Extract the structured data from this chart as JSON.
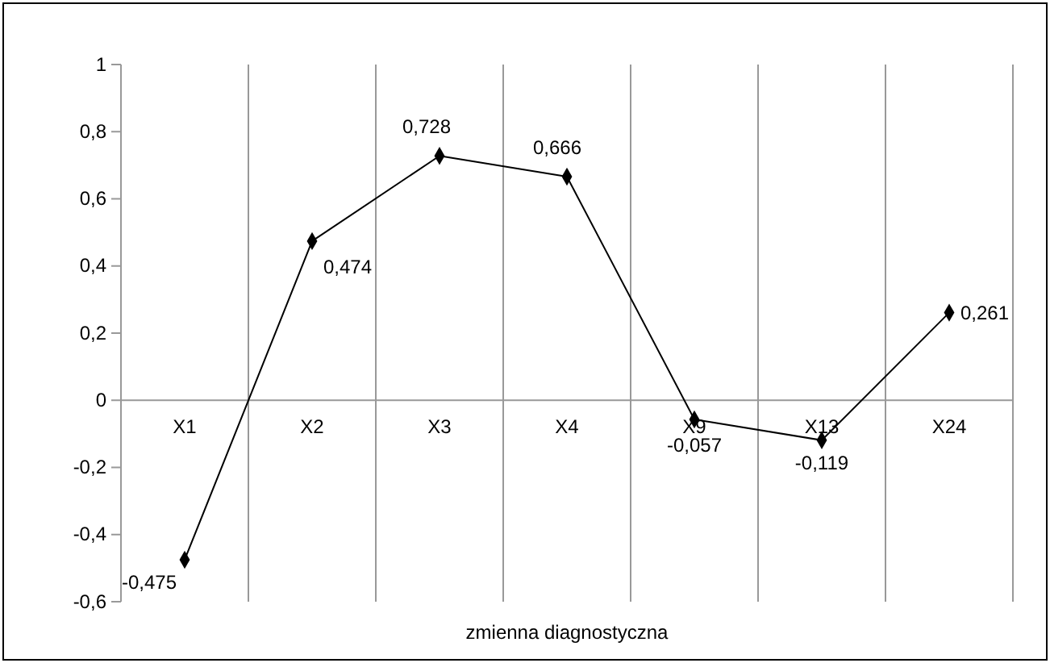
{
  "chart_data": {
    "type": "line",
    "xlabel": "zmienna diagnostyczna",
    "categories": [
      "X1",
      "X2",
      "X3",
      "X4",
      "X9",
      "X13",
      "X24"
    ],
    "series": [
      {
        "color": "#000000",
        "values": [
          -0.475,
          0.474,
          0.728,
          0.666,
          -0.057,
          -0.119,
          0.261
        ]
      }
    ],
    "value_labels": [
      "-0,475",
      "0,474",
      "0,728",
      "0,666",
      "-0,057",
      "-0,119",
      "0,261"
    ],
    "ylim": [
      -0.6,
      1
    ],
    "yticks": [
      {
        "value": -0.6,
        "label": "-0,6"
      },
      {
        "value": -0.4,
        "label": "-0,4"
      },
      {
        "value": -0.2,
        "label": "-0,2"
      },
      0,
      {
        "value": 0.2,
        "label": "0,2"
      },
      {
        "value": 0.4,
        "label": "0,4"
      },
      {
        "value": 0.6,
        "label": "0,6"
      },
      {
        "value": 0.8,
        "label": "0,8"
      },
      1
    ],
    "grid": "x",
    "marker": "diamond",
    "line_style": "solid"
  }
}
